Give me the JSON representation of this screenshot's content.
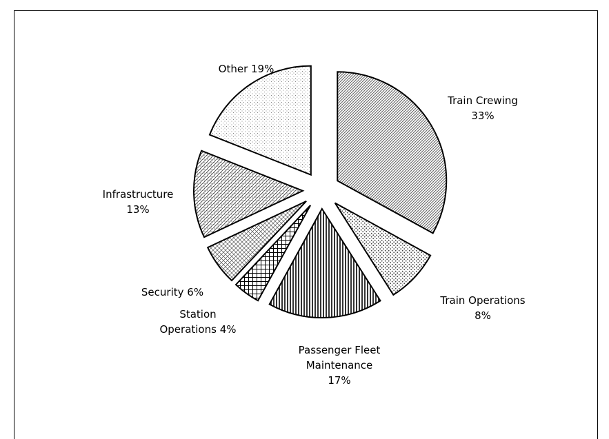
{
  "chart_data": {
    "type": "pie",
    "categories": [
      "Train Crewing",
      "Train Operations",
      "Passenger Fleet Maintenance",
      "Station Operations",
      "Security",
      "Infrastructure",
      "Other"
    ],
    "values": [
      33,
      8,
      17,
      4,
      6,
      13,
      19
    ],
    "value_labels": [
      "33%",
      "8%",
      "17%",
      "4%",
      "6%",
      "13%",
      "19%"
    ]
  }
}
